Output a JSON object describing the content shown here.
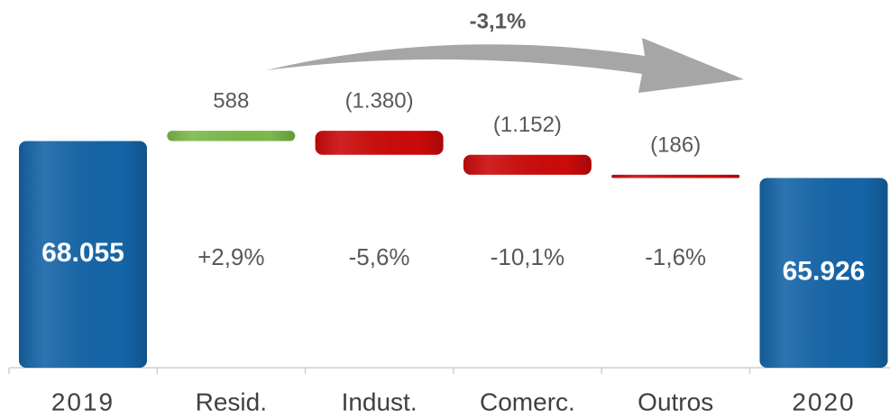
{
  "chart_data": {
    "type": "waterfall",
    "annotation": "-3,1%",
    "categories": [
      "2019",
      "Resid.",
      "Indust.",
      "Comerc.",
      "Outros",
      "2020"
    ],
    "measures": [
      "total",
      "relative",
      "relative",
      "relative",
      "relative",
      "total"
    ],
    "values": [
      68055,
      588,
      -1380,
      -1152,
      -186,
      65926
    ],
    "value_labels": [
      "68.055",
      "588",
      "(1.380)",
      "(1.152)",
      "(186)",
      "65.926"
    ],
    "change_labels": [
      null,
      "+2,9%",
      "-5,6%",
      "-10,1%",
      "-1,6%",
      null
    ],
    "colors": {
      "total": "#1565a8",
      "increase": "#7cb94a",
      "decrease": "#cc0a0a"
    },
    "ylim": [
      55000,
      70000
    ]
  }
}
